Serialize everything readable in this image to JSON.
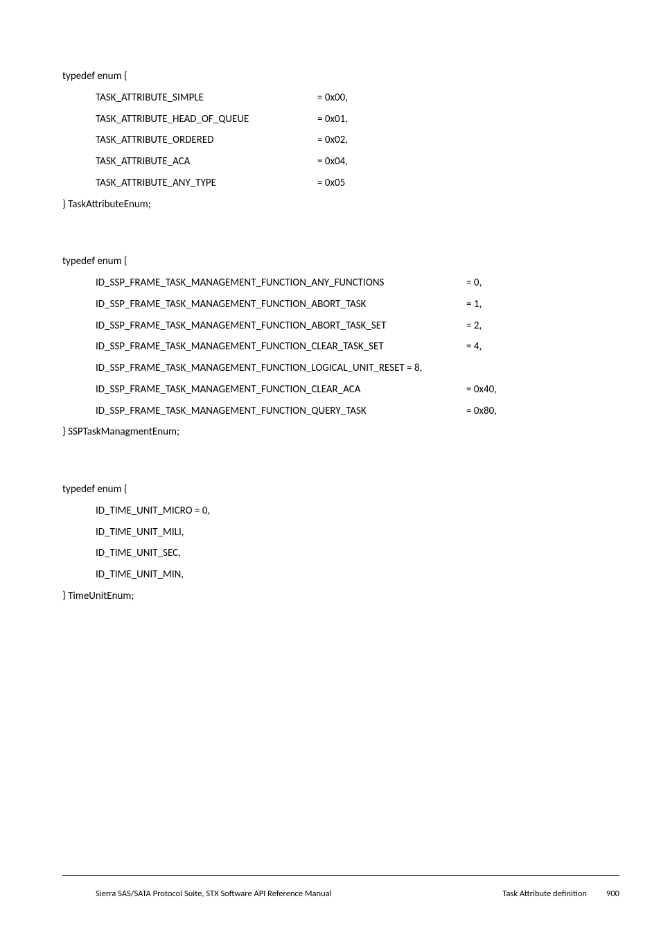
{
  "block1": {
    "open": "typedef enum {",
    "rows": [
      {
        "name": "TASK_ATTRIBUTE_SIMPLE",
        "val": "= 0x00,"
      },
      {
        "name": "TASK_ATTRIBUTE_HEAD_OF_QUEUE",
        "val": "= 0x01,"
      },
      {
        "name": "TASK_ATTRIBUTE_ORDERED",
        "val": "= 0x02,"
      },
      {
        "name": "TASK_ATTRIBUTE_ACA",
        "val": "= 0x04,"
      },
      {
        "name": "TASK_ATTRIBUTE_ANY_TYPE",
        "val": "= 0x05"
      }
    ],
    "close": "} TaskAttributeEnum;"
  },
  "block2": {
    "open": "typedef enum {",
    "rows": [
      {
        "name": "ID_SSP_FRAME_TASK_MANAGEMENT_FUNCTION_ANY_FUNCTIONS",
        "val": "= 0,"
      },
      {
        "name": "ID_SSP_FRAME_TASK_MANAGEMENT_FUNCTION_ABORT_TASK",
        "val": "= 1,"
      },
      {
        "name": "ID_SSP_FRAME_TASK_MANAGEMENT_FUNCTION_ABORT_TASK_SET",
        "val": "= 2,"
      },
      {
        "name": "ID_SSP_FRAME_TASK_MANAGEMENT_FUNCTION_CLEAR_TASK_SET",
        "val": "= 4,"
      },
      {
        "name": "ID_SSP_FRAME_TASK_MANAGEMENT_FUNCTION_LOGICAL_UNIT_RESET = 8,",
        "val": ""
      },
      {
        "name": "ID_SSP_FRAME_TASK_MANAGEMENT_FUNCTION_CLEAR_ACA",
        "val": "= 0x40,"
      },
      {
        "name": "ID_SSP_FRAME_TASK_MANAGEMENT_FUNCTION_QUERY_TASK",
        "val": "= 0x80,"
      }
    ],
    "close": "} SSPTaskManagmentEnum;"
  },
  "block3": {
    "open": "typedef enum {",
    "lines": [
      "ID_TIME_UNIT_MICRO = 0,",
      "ID_TIME_UNIT_MILI,",
      "ID_TIME_UNIT_SEC,",
      "ID_TIME_UNIT_MIN,"
    ],
    "close": "} TimeUnitEnum;"
  },
  "footer": {
    "left": "Sierra SAS/SATA Protocol Suite, STX Software API Reference Manual",
    "section": "Task Attribute definition",
    "page": "900"
  }
}
